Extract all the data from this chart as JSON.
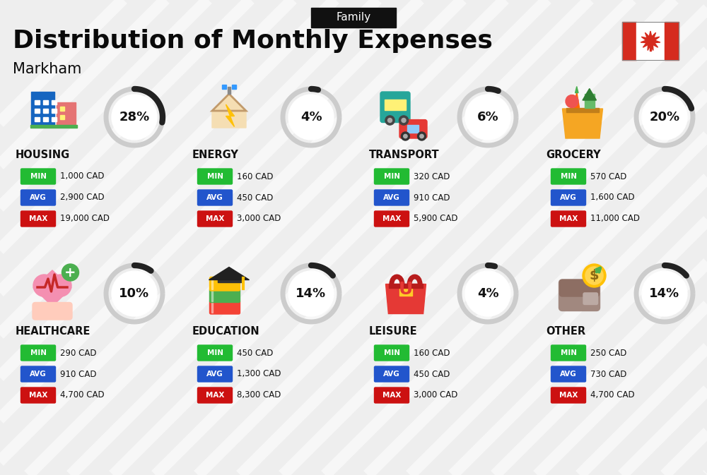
{
  "title": "Distribution of Monthly Expenses",
  "subtitle": "Markham",
  "family_label": "Family",
  "bg_color": "#eeeeee",
  "categories": [
    {
      "name": "HOUSING",
      "percent": 28,
      "min_val": "1,000 CAD",
      "avg_val": "2,900 CAD",
      "max_val": "19,000 CAD",
      "row": 0,
      "col": 0
    },
    {
      "name": "ENERGY",
      "percent": 4,
      "min_val": "160 CAD",
      "avg_val": "450 CAD",
      "max_val": "3,000 CAD",
      "row": 0,
      "col": 1
    },
    {
      "name": "TRANSPORT",
      "percent": 6,
      "min_val": "320 CAD",
      "avg_val": "910 CAD",
      "max_val": "5,900 CAD",
      "row": 0,
      "col": 2
    },
    {
      "name": "GROCERY",
      "percent": 20,
      "min_val": "570 CAD",
      "avg_val": "1,600 CAD",
      "max_val": "11,000 CAD",
      "row": 0,
      "col": 3
    },
    {
      "name": "HEALTHCARE",
      "percent": 10,
      "min_val": "290 CAD",
      "avg_val": "910 CAD",
      "max_val": "4,700 CAD",
      "row": 1,
      "col": 0
    },
    {
      "name": "EDUCATION",
      "percent": 14,
      "min_val": "450 CAD",
      "avg_val": "1,300 CAD",
      "max_val": "8,300 CAD",
      "row": 1,
      "col": 1
    },
    {
      "name": "LEISURE",
      "percent": 4,
      "min_val": "160 CAD",
      "avg_val": "450 CAD",
      "max_val": "3,000 CAD",
      "row": 1,
      "col": 2
    },
    {
      "name": "OTHER",
      "percent": 14,
      "min_val": "250 CAD",
      "avg_val": "730 CAD",
      "max_val": "4,700 CAD",
      "row": 1,
      "col": 3
    }
  ],
  "min_color": "#22bb33",
  "avg_color": "#2255cc",
  "max_color": "#cc1111",
  "diag_color": "#ffffff",
  "diag_alpha": 0.55,
  "diag_lw": 12
}
